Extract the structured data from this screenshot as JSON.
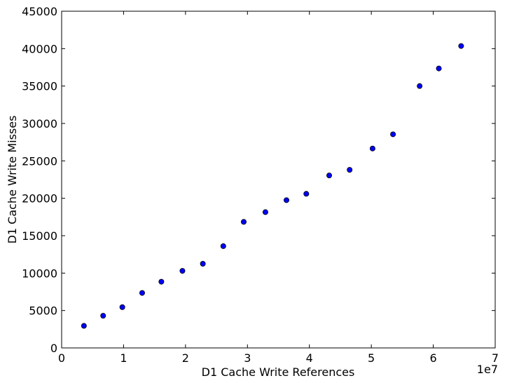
{
  "chart_data": {
    "type": "scatter",
    "title": "",
    "xlabel": "D1 Cache Write References",
    "ylabel": "D1 Cache Write Misses",
    "x_offset_label": "1e7",
    "xlim": [
      0,
      70000000
    ],
    "ylim": [
      0,
      45000
    ],
    "x_ticks": [
      0,
      10000000,
      20000000,
      30000000,
      40000000,
      50000000,
      60000000,
      70000000
    ],
    "x_tick_labels": [
      "0",
      "1",
      "2",
      "3",
      "4",
      "5",
      "6",
      "7"
    ],
    "y_ticks": [
      0,
      5000,
      10000,
      15000,
      20000,
      25000,
      30000,
      35000,
      40000,
      45000
    ],
    "y_tick_labels": [
      "0",
      "5000",
      "10000",
      "15000",
      "20000",
      "25000",
      "30000",
      "35000",
      "40000",
      "45000"
    ],
    "grid": false,
    "marker_color": "#0000ff",
    "marker_edge_color": "#000000",
    "points": [
      {
        "x": 3600000,
        "y": 2950
      },
      {
        "x": 6700000,
        "y": 4300
      },
      {
        "x": 9800000,
        "y": 5450
      },
      {
        "x": 13000000,
        "y": 7350
      },
      {
        "x": 16100000,
        "y": 8850
      },
      {
        "x": 19500000,
        "y": 10300
      },
      {
        "x": 22800000,
        "y": 11250
      },
      {
        "x": 26100000,
        "y": 13600
      },
      {
        "x": 29400000,
        "y": 16850
      },
      {
        "x": 32900000,
        "y": 18150
      },
      {
        "x": 36300000,
        "y": 19750
      },
      {
        "x": 39500000,
        "y": 20600
      },
      {
        "x": 43200000,
        "y": 23050
      },
      {
        "x": 46500000,
        "y": 23800
      },
      {
        "x": 50200000,
        "y": 26650
      },
      {
        "x": 53500000,
        "y": 28550
      },
      {
        "x": 57800000,
        "y": 35000
      },
      {
        "x": 60900000,
        "y": 37350
      },
      {
        "x": 64500000,
        "y": 40350
      }
    ]
  }
}
